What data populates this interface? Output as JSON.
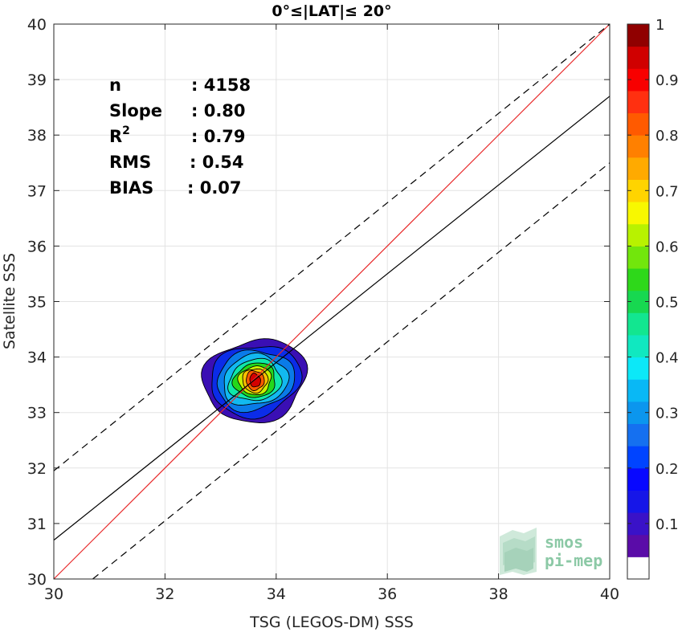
{
  "chart_data": {
    "type": "contour",
    "title": "0°≤|LAT|≤ 20°",
    "xlabel": "TSG (LEGOS-DM) SSS",
    "ylabel": "Satellite SSS",
    "xlim": [
      30,
      40
    ],
    "ylim": [
      30,
      40
    ],
    "xticks": [
      "30",
      "32",
      "34",
      "36",
      "38",
      "40"
    ],
    "yticks": [
      "30",
      "31",
      "32",
      "33",
      "34",
      "35",
      "36",
      "37",
      "38",
      "39",
      "40"
    ],
    "grid": true,
    "stats": [
      {
        "label": "n",
        "value": ": 4158"
      },
      {
        "label": "Slope",
        "value": ": 0.80"
      },
      {
        "label": "R",
        "sup": "2",
        "value": ": 0.79"
      },
      {
        "label": "RMS",
        "value": ": 0.54"
      },
      {
        "label": "BIAS",
        "value": ": 0.07"
      }
    ],
    "lines": [
      {
        "role": "one-to-one",
        "color": "#e8292a",
        "dash": "solid",
        "x": [
          30,
          40
        ],
        "y": [
          30,
          40
        ]
      },
      {
        "role": "regression",
        "color": "#000000",
        "dash": "solid",
        "x": [
          30,
          40
        ],
        "y": [
          30.7,
          38.7
        ]
      },
      {
        "role": "upper-bound",
        "color": "#000000",
        "dash": "dashed",
        "x": [
          30,
          40
        ],
        "y": [
          31.95,
          40.0
        ]
      },
      {
        "role": "lower-bound",
        "color": "#000000",
        "dash": "dashed",
        "x": [
          30.7,
          40
        ],
        "y": [
          30.0,
          37.5
        ]
      }
    ],
    "density_center": {
      "x": 33.62,
      "y": 33.58
    },
    "contour_levels": [
      {
        "level": 0.05,
        "rx": 0.98,
        "ry": 0.72,
        "color": "#3a0fb4"
      },
      {
        "level": 0.15,
        "rx": 0.86,
        "ry": 0.62,
        "color": "#0b2ce8"
      },
      {
        "level": 0.25,
        "rx": 0.74,
        "ry": 0.52,
        "color": "#0a7be8"
      },
      {
        "level": 0.35,
        "rx": 0.62,
        "ry": 0.44,
        "color": "#12b9f0"
      },
      {
        "level": 0.45,
        "rx": 0.5,
        "ry": 0.36,
        "color": "#10e8a8"
      },
      {
        "level": 0.55,
        "rx": 0.4,
        "ry": 0.3,
        "color": "#24d81b"
      },
      {
        "level": 0.65,
        "rx": 0.31,
        "ry": 0.25,
        "color": "#c8f000"
      },
      {
        "level": 0.75,
        "rx": 0.24,
        "ry": 0.21,
        "color": "#ffc000"
      },
      {
        "level": 0.85,
        "rx": 0.17,
        "ry": 0.17,
        "color": "#ff5a00"
      },
      {
        "level": 0.95,
        "rx": 0.1,
        "ry": 0.12,
        "color": "#d40000"
      }
    ],
    "colorbar": {
      "ticks": [
        "0.1",
        "0.2",
        "0.3",
        "0.4",
        "0.5",
        "0.6",
        "0.7",
        "0.8",
        "0.9",
        "1"
      ],
      "tick_values": [
        0.1,
        0.2,
        0.3,
        0.4,
        0.5,
        0.6,
        0.7,
        0.8,
        0.9,
        1.0
      ],
      "colors": [
        "#ffffff",
        "#5a0ca8",
        "#3a12c8",
        "#1616e8",
        "#0808ff",
        "#0044ff",
        "#1570f0",
        "#0b96ee",
        "#09b8f5",
        "#0ce8f8",
        "#10e8c0",
        "#12e690",
        "#17d850",
        "#2ed81a",
        "#72e60c",
        "#b8f200",
        "#f8f800",
        "#ffd400",
        "#ffaa00",
        "#ff8000",
        "#ff5a00",
        "#ff3010",
        "#f80000",
        "#d00000",
        "#900000"
      ]
    },
    "logo": {
      "line1": "smos",
      "line2": "pi-mep",
      "color": "#8cc9a6"
    }
  }
}
